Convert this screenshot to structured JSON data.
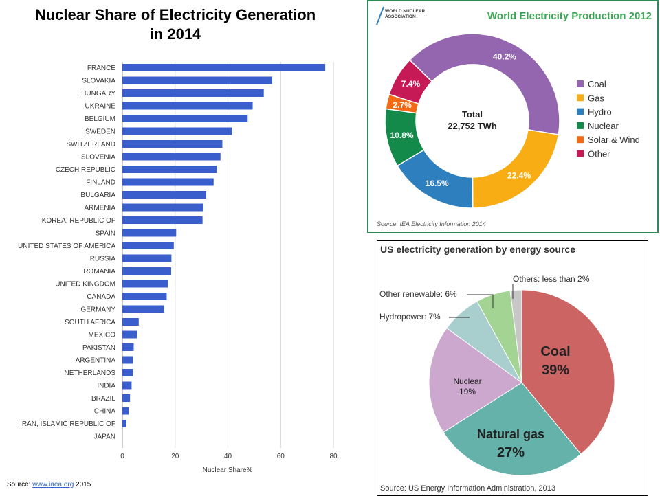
{
  "bar_chart": {
    "title_line1": "Nuclear Share of Electricity Generation",
    "title_line2": "in 2014",
    "source_prefix": "Source: ",
    "source_link": "www.iaea.org",
    "source_suffix": " 2015",
    "bar_color": "#3a5fcd"
  },
  "donut_chart": {
    "logo_line1": "WORLD NUCLEAR",
    "logo_line2": "ASSOCIATION",
    "center_label": "Total",
    "center_value": "22,752 TWh",
    "source": "Source: IEA Electricity Information 2014",
    "title_color": "#3aa655"
  },
  "pie_chart": {
    "label_coal": "Coal",
    "pct_coal": "39%",
    "label_gas": "Natural gas",
    "pct_gas": "27%",
    "label_nuclear": "Nuclear",
    "pct_nuclear": "19%"
  },
  "chart_data": [
    {
      "type": "bar",
      "orientation": "horizontal",
      "title": "Nuclear Share of Electricity Generation in 2014",
      "xlabel": "Nuclear Share%",
      "ylabel": "",
      "xlim": [
        0,
        80
      ],
      "xticks": [
        0,
        20,
        40,
        60,
        80
      ],
      "grid": true,
      "categories": [
        "FRANCE",
        "SLOVAKIA",
        "HUNGARY",
        "UKRAINE",
        "BELGIUM",
        "SWEDEN",
        "SWITZERLAND",
        "SLOVENIA",
        "CZECH REPUBLIC",
        "FINLAND",
        "BULGARIA",
        "ARMENIA",
        "KOREA, REPUBLIC OF",
        "SPAIN",
        "UNITED STATES OF AMERICA",
        "RUSSIA",
        "ROMANIA",
        "UNITED KINGDOM",
        "CANADA",
        "GERMANY",
        "SOUTH AFRICA",
        "MEXICO",
        "PAKISTAN",
        "ARGENTINA",
        "NETHERLANDS",
        "INDIA",
        "BRAZIL",
        "CHINA",
        "IRAN, ISLAMIC REPUBLIC OF",
        "JAPAN"
      ],
      "values": [
        76.9,
        56.8,
        53.6,
        49.4,
        47.5,
        41.5,
        37.9,
        37.2,
        35.8,
        34.6,
        31.8,
        30.7,
        30.4,
        20.4,
        19.5,
        18.6,
        18.5,
        17.2,
        16.8,
        15.8,
        6.2,
        5.6,
        4.3,
        4.0,
        4.0,
        3.5,
        2.9,
        2.4,
        1.5,
        0.0
      ]
    },
    {
      "type": "pie",
      "subtype": "donut",
      "title": "World Electricity Production 2012",
      "legend_position": "right",
      "slices": [
        {
          "label": "Coal",
          "value": 40.2,
          "display": "40.2%",
          "color": "#9466b0"
        },
        {
          "label": "Gas",
          "value": 22.4,
          "display": "22.4%",
          "color": "#f9ad14"
        },
        {
          "label": "Hydro",
          "value": 16.5,
          "display": "16.5%",
          "color": "#2e7fbd"
        },
        {
          "label": "Nuclear",
          "value": 10.8,
          "display": "10.8%",
          "color": "#138a4a"
        },
        {
          "label": "Solar & Wind",
          "value": 2.7,
          "display": "2.7%",
          "color": "#f26a16"
        },
        {
          "label": "Other",
          "value": 7.4,
          "display": "7.4%",
          "color": "#c61a56"
        }
      ]
    },
    {
      "type": "pie",
      "title": "US electricity generation by energy source",
      "source": "Source: US Energy Information Administration, 2013",
      "slices": [
        {
          "label": "Coal",
          "value": 39,
          "color": "#cd6464"
        },
        {
          "label": "Natural gas",
          "value": 27,
          "color": "#64b2aa"
        },
        {
          "label": "Nuclear",
          "value": 19,
          "color": "#cca8cf"
        },
        {
          "label": "Hydropower: 7%",
          "value": 7,
          "color": "#a8cecd"
        },
        {
          "label": "Other renewable: 6%",
          "value": 6,
          "color": "#a3d493"
        },
        {
          "label": "Others: less than 2%",
          "value": 2,
          "color": "#c8c8c8"
        }
      ]
    }
  ]
}
